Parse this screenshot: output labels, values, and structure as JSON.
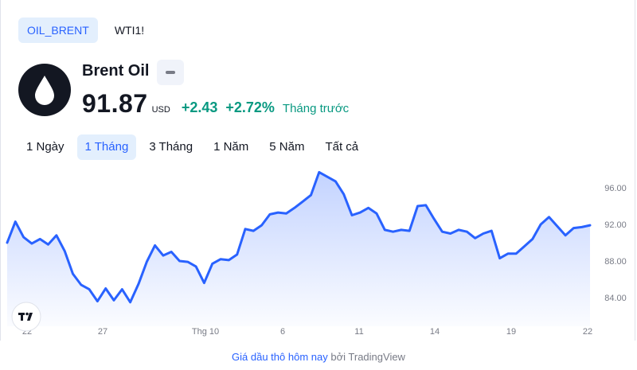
{
  "tabs": [
    {
      "label": "OIL_BRENT",
      "active": true
    },
    {
      "label": "WTI1!",
      "active": false
    }
  ],
  "symbol": {
    "logo_icon": "oil-drop-icon",
    "name": "Brent Oil",
    "price": "91.87",
    "currency": "USD",
    "change_abs": "+2.43",
    "change_pct": "+2.72%",
    "period": "Tháng trước"
  },
  "ranges": [
    {
      "label": "1 Ngày",
      "active": false
    },
    {
      "label": "1 Tháng",
      "active": true
    },
    {
      "label": "3 Tháng",
      "active": false
    },
    {
      "label": "1 Năm",
      "active": false
    },
    {
      "label": "5 Năm",
      "active": false
    },
    {
      "label": "Tất cả",
      "active": false
    }
  ],
  "chart_data": {
    "type": "area",
    "line_color": "#2962ff",
    "fill_color": "#2962ff",
    "ylim": [
      82,
      98
    ],
    "y_ticks": [
      "96.00",
      "92.00",
      "88.00",
      "84.00"
    ],
    "x_ticks": [
      "22",
      "27",
      "Thg 10",
      "6",
      "11",
      "14",
      "19",
      "22"
    ],
    "values": [
      90.0,
      92.3,
      90.6,
      89.9,
      90.4,
      89.8,
      90.8,
      89.1,
      86.6,
      85.4,
      84.9,
      83.6,
      85.0,
      83.7,
      84.9,
      83.5,
      85.5,
      87.9,
      89.7,
      88.6,
      89.0,
      88.0,
      87.9,
      87.4,
      85.6,
      87.7,
      88.2,
      88.1,
      88.7,
      91.5,
      91.3,
      91.9,
      93.1,
      93.3,
      93.2,
      93.8,
      94.5,
      95.2,
      97.7,
      97.2,
      96.7,
      95.3,
      93.0,
      93.3,
      93.8,
      93.2,
      91.4,
      91.2,
      91.4,
      91.3,
      94.0,
      94.1,
      92.6,
      91.2,
      91.0,
      91.4,
      91.2,
      90.5,
      91.0,
      91.3,
      88.3,
      88.8,
      88.8,
      89.6,
      90.4,
      92.0,
      92.8,
      91.8,
      90.8,
      91.6,
      91.7,
      91.9
    ]
  },
  "attribution": {
    "link": "Giá dầu thô hôm nay",
    "by": "bởi",
    "source": "TradingView"
  }
}
